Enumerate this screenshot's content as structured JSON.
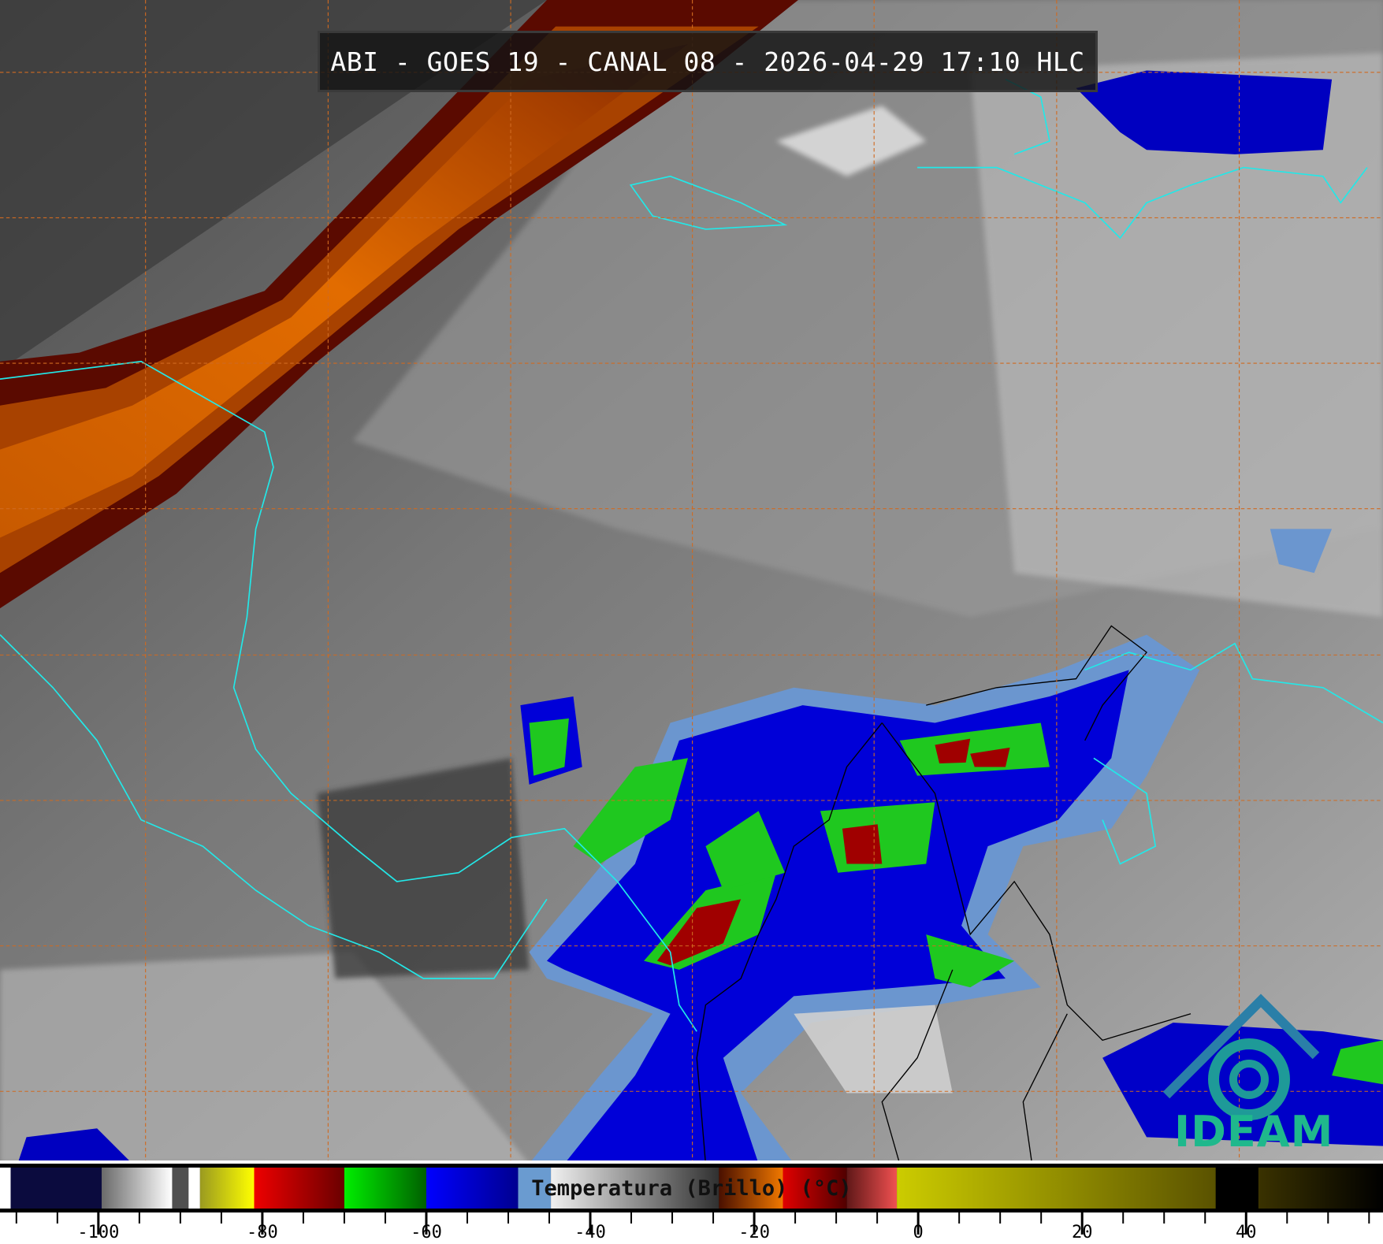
{
  "title": "ABI - GOES 19 - CANAL 08 - 2026-04-29 17:10 HLC",
  "colorbar": {
    "label": "Temperatura (Brillo) (°C)",
    "range": [
      -112,
      56.7
    ],
    "tick_labels": [
      "-100",
      "-80",
      "-60",
      "-40",
      "-20",
      "0",
      "20",
      "40"
    ],
    "tick_values": [
      -100,
      -80,
      -60,
      -40,
      -20,
      0,
      20,
      40
    ],
    "minor_tick_step": 5,
    "segments": [
      {
        "from": -112,
        "to": -110.7,
        "c1": "#ffffff",
        "c2": "#ffffff"
      },
      {
        "from": -110.7,
        "to": -99.6,
        "c1": "#0b0b3e",
        "c2": "#0b0b3e"
      },
      {
        "from": -99.6,
        "to": -91,
        "c1": "#6a6a6a",
        "c2": "#ffffff"
      },
      {
        "from": -91,
        "to": -89,
        "c1": "#505050",
        "c2": "#505050"
      },
      {
        "from": -89,
        "to": -87.6,
        "c1": "#ffffff",
        "c2": "#ffffff"
      },
      {
        "from": -87.6,
        "to": -81,
        "c1": "#9a9a20",
        "c2": "#ffff00"
      },
      {
        "from": -81,
        "to": -70,
        "c1": "#ee0000",
        "c2": "#6a0000"
      },
      {
        "from": -70,
        "to": -60,
        "c1": "#00ee00",
        "c2": "#006000"
      },
      {
        "from": -60,
        "to": -48.8,
        "c1": "#0000ff",
        "c2": "#000090"
      },
      {
        "from": -48.8,
        "to": -44.8,
        "c1": "#6a9bd0",
        "c2": "#6a9bd0"
      },
      {
        "from": -44.8,
        "to": -24.3,
        "c1": "#f0f0f0",
        "c2": "#303030"
      },
      {
        "from": -24.3,
        "to": -16.5,
        "c1": "#4a1000",
        "c2": "#f07800"
      },
      {
        "from": -16.5,
        "to": -8.7,
        "c1": "#e00000",
        "c2": "#500000"
      },
      {
        "from": -8.7,
        "to": -2.6,
        "c1": "#601818",
        "c2": "#f05050"
      },
      {
        "from": -2.6,
        "to": 36.3,
        "c1": "#cccc00",
        "c2": "#5a5200"
      },
      {
        "from": 36.3,
        "to": 41.5,
        "c1": "#000000",
        "c2": "#000000"
      },
      {
        "from": 41.5,
        "to": 56.7,
        "c1": "#3a3200",
        "c2": "#000000"
      }
    ]
  },
  "colors": {
    "coastline": "#22e8e8",
    "borders": "#000000",
    "grid": "#d06a20",
    "logo": "#1fb88c"
  },
  "logo": {
    "text": "IDEAM"
  }
}
